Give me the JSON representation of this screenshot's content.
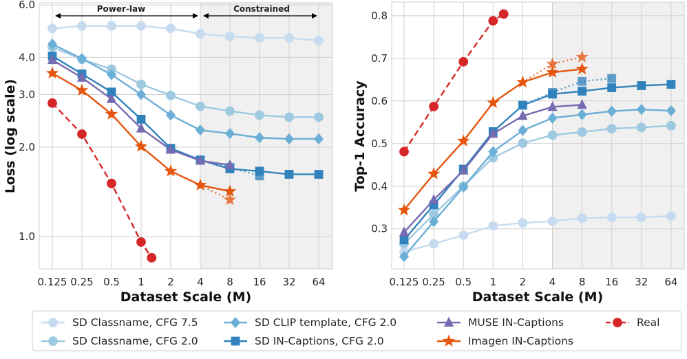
{
  "chart_data": [
    {
      "type": "line",
      "xlabel": "Dataset Scale (M)",
      "ylabel": "Loss (log scale)",
      "x": [
        0.125,
        0.25,
        0.5,
        1,
        2,
        4,
        8,
        16,
        32,
        64
      ],
      "x_tick_labels": [
        "0.125",
        "0.25",
        "0.5",
        "1",
        "2",
        "4",
        "8",
        "16",
        "32",
        "64"
      ],
      "x_scale": "log2",
      "y_scale": "log",
      "ylim": [
        0.78,
        6.1
      ],
      "y_ticks": [
        1.0,
        2.0,
        3.0,
        4.0,
        6.0
      ],
      "y_tick_labels": [
        "1.0",
        "2.0",
        "3.0",
        "4.0",
        "6.0"
      ],
      "grid": true,
      "shaded_region": {
        "from": 4,
        "color": "#f0f0f0"
      },
      "annotations": [
        {
          "text": "Power-law",
          "from": 0.125,
          "to": 4
        },
        {
          "text": "Constrained",
          "from": 4,
          "to": 64
        }
      ],
      "series": [
        {
          "key": "cfg75",
          "x": [
            0.125,
            0.25,
            0.5,
            1,
            2,
            4,
            8,
            16,
            32,
            64
          ],
          "values": [
            5.0,
            5.1,
            5.1,
            5.1,
            5.0,
            4.8,
            4.7,
            4.65,
            4.65,
            4.55
          ]
        },
        {
          "key": "cfg20",
          "x": [
            0.125,
            0.25,
            0.5,
            1,
            2,
            4,
            8,
            16,
            32,
            64
          ],
          "values": [
            4.33,
            3.94,
            3.65,
            3.25,
            2.98,
            2.74,
            2.64,
            2.56,
            2.52,
            2.52
          ]
        },
        {
          "key": "clip",
          "x": [
            0.125,
            0.25,
            0.5,
            1,
            2,
            4,
            8,
            16,
            32,
            64
          ],
          "values": [
            4.43,
            3.96,
            3.5,
            3.0,
            2.56,
            2.28,
            2.22,
            2.15,
            2.13,
            2.13
          ]
        },
        {
          "key": "incap",
          "x": [
            0.125,
            0.25,
            0.5,
            1,
            2,
            4,
            8,
            16,
            32,
            64
          ],
          "values": [
            4.04,
            3.52,
            3.06,
            2.48,
            1.98,
            1.81,
            1.69,
            1.66,
            1.62,
            1.62
          ]
        },
        {
          "key": "incap",
          "dotted": true,
          "x": [
            4,
            8,
            16
          ],
          "values": [
            1.81,
            1.71,
            1.6
          ]
        },
        {
          "key": "muse",
          "x": [
            0.125,
            0.25,
            0.5,
            1,
            2,
            4,
            8
          ],
          "values": [
            3.92,
            3.42,
            2.9,
            2.31,
            1.96,
            1.8,
            1.74
          ]
        },
        {
          "key": "imagen",
          "x": [
            0.125,
            0.25,
            0.5,
            1,
            2,
            4,
            8
          ],
          "values": [
            3.54,
            3.1,
            2.58,
            2.01,
            1.66,
            1.49,
            1.42
          ]
        },
        {
          "key": "imagen",
          "dotted": true,
          "x": [
            4,
            8
          ],
          "values": [
            1.49,
            1.33
          ]
        },
        {
          "key": "real",
          "x": [
            0.125,
            0.25,
            0.5,
            1,
            1.28
          ],
          "values": [
            2.81,
            2.21,
            1.51,
            0.96,
            0.85
          ]
        }
      ]
    },
    {
      "type": "line",
      "xlabel": "Dataset Scale (M)",
      "ylabel": "Top-1 Accuracy",
      "x": [
        0.125,
        0.25,
        0.5,
        1,
        2,
        4,
        8,
        16,
        32,
        64
      ],
      "x_tick_labels": [
        "0.125",
        "0.25",
        "0.5",
        "1",
        "2",
        "4",
        "8",
        "16",
        "32",
        "64"
      ],
      "x_scale": "log2",
      "y_scale": "linear",
      "ylim": [
        0.206,
        0.832
      ],
      "y_ticks": [
        0.3,
        0.4,
        0.5,
        0.6,
        0.7,
        0.8
      ],
      "y_tick_labels": [
        "0.3",
        "0.4",
        "0.5",
        "0.6",
        "0.7",
        "0.8"
      ],
      "grid": true,
      "shaded_region": {
        "from": 4,
        "color": "#f0f0f0"
      },
      "series": [
        {
          "key": "cfg75",
          "x": [
            0.125,
            0.25,
            0.5,
            1,
            2,
            4,
            8,
            16,
            32,
            64
          ],
          "values": [
            0.246,
            0.265,
            0.285,
            0.307,
            0.314,
            0.318,
            0.325,
            0.327,
            0.327,
            0.33
          ]
        },
        {
          "key": "cfg20",
          "x": [
            0.125,
            0.25,
            0.5,
            1,
            2,
            4,
            8,
            16,
            32,
            64
          ],
          "values": [
            0.265,
            0.334,
            0.4,
            0.467,
            0.501,
            0.52,
            0.527,
            0.535,
            0.538,
            0.542
          ]
        },
        {
          "key": "clip",
          "x": [
            0.125,
            0.25,
            0.5,
            1,
            2,
            4,
            8,
            16,
            32,
            64
          ],
          "values": [
            0.235,
            0.317,
            0.398,
            0.481,
            0.531,
            0.56,
            0.568,
            0.576,
            0.58,
            0.577
          ]
        },
        {
          "key": "incap",
          "x": [
            0.125,
            0.25,
            0.5,
            1,
            2,
            4,
            8,
            16,
            32,
            64
          ],
          "values": [
            0.274,
            0.356,
            0.44,
            0.528,
            0.59,
            0.616,
            0.623,
            0.631,
            0.636,
            0.639
          ]
        },
        {
          "key": "incap",
          "dotted": true,
          "x": [
            2,
            4,
            8,
            16
          ],
          "values": [
            0.59,
            0.62,
            0.646,
            0.653
          ]
        },
        {
          "key": "muse",
          "x": [
            0.125,
            0.25,
            0.5,
            1,
            2,
            4,
            8
          ],
          "values": [
            0.292,
            0.368,
            0.437,
            0.523,
            0.565,
            0.586,
            0.591
          ]
        },
        {
          "key": "imagen",
          "x": [
            0.125,
            0.25,
            0.5,
            1,
            2,
            4,
            8
          ],
          "values": [
            0.344,
            0.429,
            0.506,
            0.596,
            0.644,
            0.667,
            0.675
          ]
        },
        {
          "key": "imagen",
          "dotted": true,
          "x": [
            2,
            4,
            8
          ],
          "values": [
            0.644,
            0.687,
            0.703
          ]
        },
        {
          "key": "real",
          "x": [
            0.125,
            0.25,
            0.5,
            1,
            1.28
          ],
          "values": [
            0.481,
            0.587,
            0.692,
            0.788,
            0.804
          ]
        }
      ]
    }
  ],
  "legend": {
    "placement": "bottom",
    "items": [
      {
        "key": "cfg75",
        "name": "SD Classname, CFG 7.5",
        "color": "#c6dbef",
        "marker": "circle",
        "dash": "solid"
      },
      {
        "key": "cfg20",
        "name": "SD Classname, CFG 2.0",
        "color": "#9ecae1",
        "marker": "circle",
        "dash": "solid"
      },
      {
        "key": "clip",
        "name": "SD CLIP template, CFG 2.0",
        "color": "#6baed6",
        "marker": "diamond",
        "dash": "solid"
      },
      {
        "key": "incap",
        "name": "SD IN-Captions, CFG 2.0",
        "color": "#3182bd",
        "marker": "square",
        "dash": "solid"
      },
      {
        "key": "muse",
        "name": "MUSE IN-Captions",
        "color": "#756bb1",
        "marker": "triangle",
        "dash": "solid"
      },
      {
        "key": "imagen",
        "name": "Imagen IN-Captions",
        "color": "#e6550d",
        "marker": "star",
        "dash": "solid"
      },
      {
        "key": "real",
        "name": "Real",
        "color": "#d62728",
        "marker": "circle",
        "dash": "dashed"
      }
    ]
  }
}
